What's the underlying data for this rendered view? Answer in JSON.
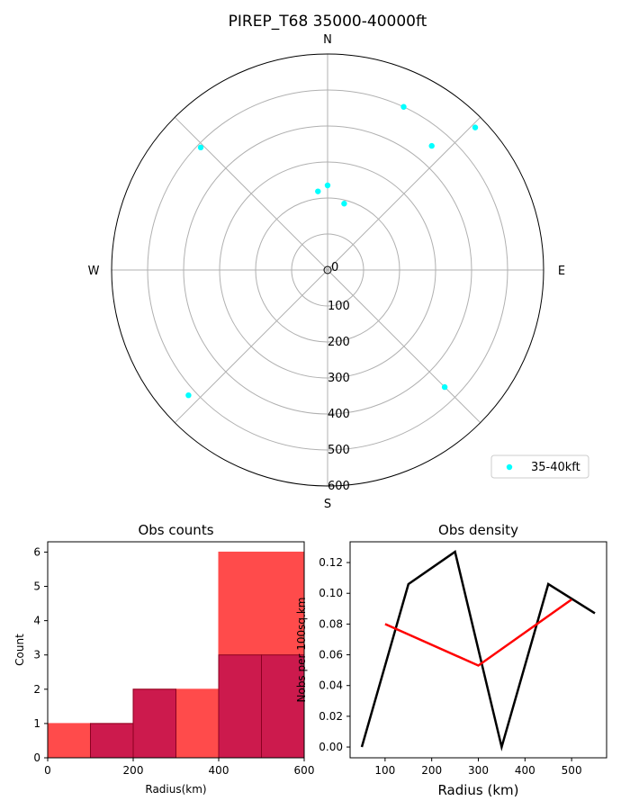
{
  "title": "PIREP_T68 35000-40000ft",
  "chart_data": [
    {
      "type": "scatter",
      "subtype": "polar",
      "title": "PIREP_T68 35000-40000ft",
      "compass": [
        "N",
        "E",
        "S",
        "W"
      ],
      "radial_ticks": [
        "0",
        "100",
        "200",
        "300",
        "400",
        "500",
        "600"
      ],
      "rlim": [
        0,
        600
      ],
      "grid": true,
      "legend": {
        "label": "35-40kft",
        "position": "bottom-right"
      },
      "series": [
        {
          "name": "35-40kft",
          "color": "#00ffff",
          "points": [
            {
              "azimuth_deg": 25,
              "range_km": 500
            },
            {
              "azimuth_deg": 40,
              "range_km": 450
            },
            {
              "azimuth_deg": 46,
              "range_km": 570
            },
            {
              "azimuth_deg": 314,
              "range_km": 490
            },
            {
              "azimuth_deg": 0,
              "range_km": 235
            },
            {
              "azimuth_deg": 353,
              "range_km": 220
            },
            {
              "azimuth_deg": 14,
              "range_km": 190
            },
            {
              "azimuth_deg": 135,
              "range_km": 460
            },
            {
              "azimuth_deg": 228,
              "range_km": 520
            }
          ]
        }
      ]
    },
    {
      "type": "bar",
      "subtype": "histogram",
      "title": "Obs counts",
      "xlabel": "Radius(km)",
      "ylabel": "Count",
      "xlim": [
        0,
        600
      ],
      "ylim": [
        0,
        6.3
      ],
      "xticks": [
        "0",
        "200",
        "400",
        "600"
      ],
      "yticks": [
        "0",
        "1",
        "2",
        "3",
        "4",
        "5",
        "6"
      ],
      "series": [
        {
          "color": "#ff4b4b",
          "bins": [
            {
              "from": 0,
              "to": 100,
              "count": 1
            },
            {
              "from": 100,
              "to": 200,
              "count": 1
            },
            {
              "from": 200,
              "to": 300,
              "count": 2
            },
            {
              "from": 300,
              "to": 400,
              "count": 2
            },
            {
              "from": 400,
              "to": 600,
              "count": 6
            }
          ]
        },
        {
          "color": "#cc1a4d",
          "bins": [
            {
              "from": 100,
              "to": 200,
              "count": 1
            },
            {
              "from": 200,
              "to": 300,
              "count": 2
            },
            {
              "from": 400,
              "to": 500,
              "count": 3
            },
            {
              "from": 500,
              "to": 600,
              "count": 3
            }
          ]
        }
      ]
    },
    {
      "type": "line",
      "title": "Obs density",
      "xlabel": "Radius (km)",
      "ylabel": "Nobs per 100sq.km",
      "xlim": [
        25,
        575
      ],
      "ylim": [
        -0.007,
        0.1335
      ],
      "xticks": [
        "100",
        "200",
        "300",
        "400",
        "500"
      ],
      "yticks": [
        "0.00",
        "0.02",
        "0.04",
        "0.06",
        "0.08",
        "0.10",
        "0.12"
      ],
      "series": [
        {
          "color": "#000000",
          "x": [
            50,
            150,
            250,
            350,
            450,
            550
          ],
          "y": [
            0.0,
            0.106,
            0.127,
            0.0,
            0.106,
            0.087
          ]
        },
        {
          "color": "#ff0000",
          "x": [
            100,
            300,
            500
          ],
          "y": [
            0.08,
            0.053,
            0.096
          ]
        }
      ]
    }
  ]
}
